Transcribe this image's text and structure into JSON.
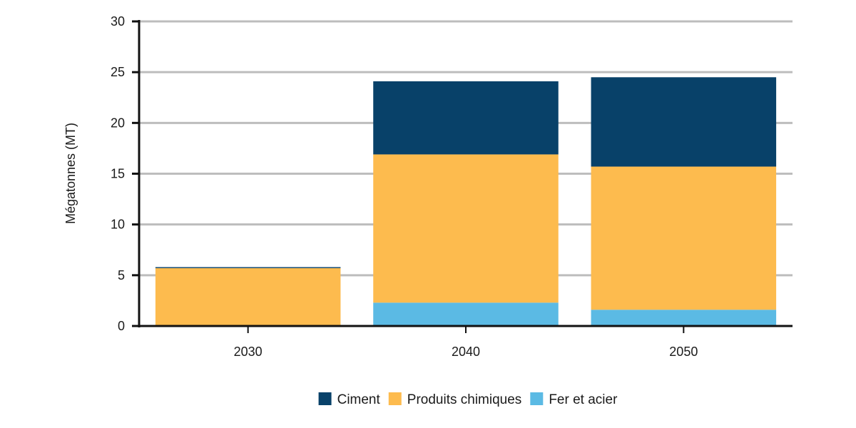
{
  "chart_data": {
    "type": "bar",
    "stacked": true,
    "categories": [
      "2030",
      "2040",
      "2050"
    ],
    "series": [
      {
        "name": "Fer et acier",
        "color": "#5bbae4",
        "values": [
          0,
          2.3,
          1.6
        ]
      },
      {
        "name": "Produits chimiques",
        "color": "#fdbb4e",
        "values": [
          5.7,
          14.6,
          14.1
        ]
      },
      {
        "name": "Ciment",
        "color": "#084169",
        "values": [
          0.1,
          7.2,
          8.8
        ]
      }
    ],
    "legend_order": [
      "Ciment",
      "Produits chimiques",
      "Fer et acier"
    ],
    "title": "",
    "xlabel": "",
    "ylabel": "Mégatonnes (MT)",
    "ylim": [
      0,
      30
    ],
    "yticks": [
      0,
      5,
      10,
      15,
      20,
      25,
      30
    ],
    "grid": true,
    "legend_position": "bottom-center"
  }
}
